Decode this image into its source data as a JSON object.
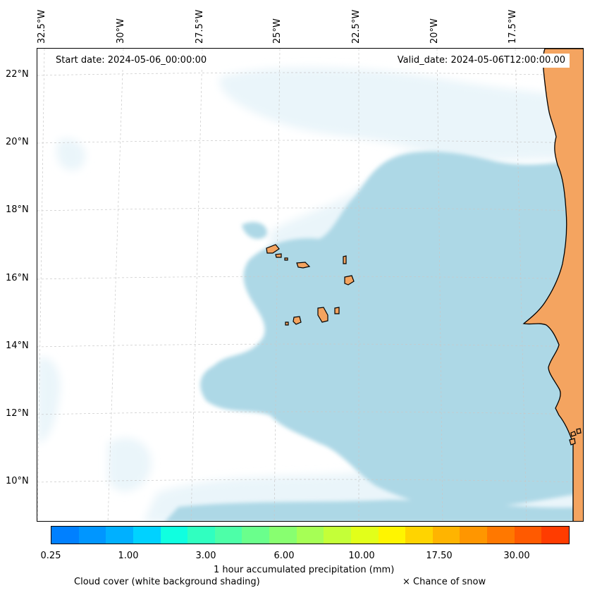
{
  "header": {
    "start_date": "Start date: 2024-05-06_00:00:00",
    "valid_date": "Valid_date: 2024-05-06T12:00:00.00"
  },
  "map": {
    "longitude_labels": [
      "32.5°W",
      "30°W",
      "27.5°W",
      "25°W",
      "22.5°W",
      "20°W",
      "17.5°W"
    ],
    "latitude_labels": [
      "22°N",
      "20°N",
      "18°N",
      "16°N",
      "14°N",
      "12°N",
      "10°N"
    ],
    "colors": {
      "land": "#f4a460",
      "coastline": "#000000",
      "precip_light": "#add8e6",
      "cloud_shading": "#eaf5fa",
      "gridline": "#c8c8c8"
    }
  },
  "colorbar": {
    "colors": [
      "#0080ff",
      "#0096ff",
      "#00b0ff",
      "#00d2ff",
      "#10ffe0",
      "#30ffc0",
      "#4dffa8",
      "#6aff8c",
      "#88ff70",
      "#a6ff55",
      "#c4ff38",
      "#e2ff1a",
      "#fff500",
      "#ffd400",
      "#ffb400",
      "#ff9600",
      "#ff7800",
      "#ff5a00",
      "#ff3c00"
    ],
    "ticks": [
      "0.25",
      "1.00",
      "3.00",
      "6.00",
      "10.00",
      "17.50",
      "30.00"
    ],
    "label": "1 hour accumulated precipitation (mm)"
  },
  "legend": {
    "cloud_cover": "Cloud cover (white background shading)",
    "snow": "× Chance of snow"
  }
}
